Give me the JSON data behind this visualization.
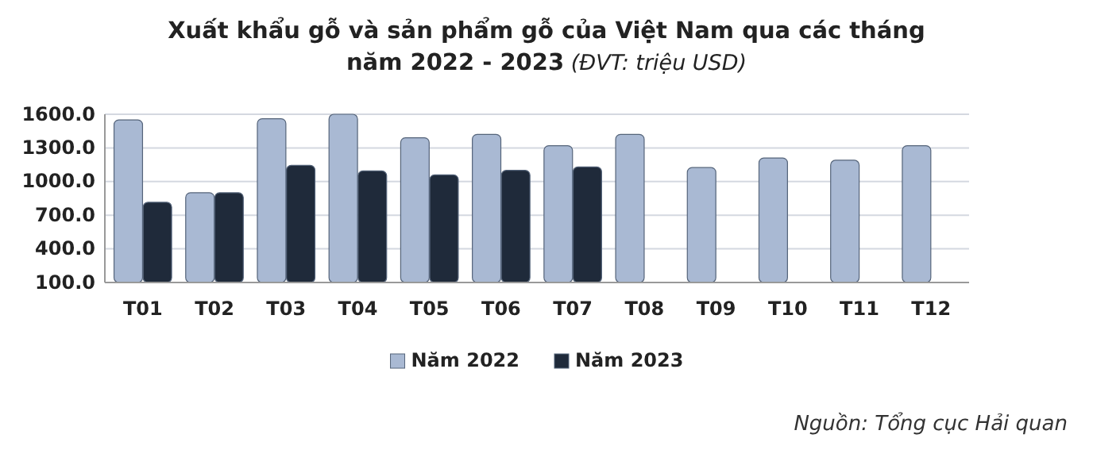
{
  "chart_data": {
    "type": "bar",
    "title": "Xuất khẩu gỗ và sản phẩm gỗ của Việt Nam qua các tháng\nnăm 2022 - 2023 (ĐVT: triệu USD)",
    "categories": [
      "T01",
      "T02",
      "T03",
      "T04",
      "T05",
      "T06",
      "T07",
      "T08",
      "T09",
      "T10",
      "T11",
      "T12"
    ],
    "series": [
      {
        "name": "Năm 2022",
        "color": "#a9b9d3",
        "values": [
          1550,
          900,
          1560,
          1600,
          1390,
          1420,
          1320,
          1420,
          1125,
          1210,
          1190,
          1320
        ]
      },
      {
        "name": "Năm 2023",
        "color": "#1f2a3a",
        "values": [
          815,
          900,
          1145,
          1095,
          1060,
          1100,
          1130,
          null,
          null,
          null,
          null,
          null
        ]
      }
    ],
    "ylim": [
      100,
      1600
    ],
    "yticks": [
      {
        "value": 100,
        "label": "100.0"
      },
      {
        "value": 400,
        "label": "400.0"
      },
      {
        "value": 700,
        "label": "700.0"
      },
      {
        "value": 1000,
        "label": "1000.0"
      },
      {
        "value": 1300,
        "label": "1300.0"
      },
      {
        "value": 1600,
        "label": "1600.0"
      }
    ],
    "grid": "y",
    "legend": "bottom",
    "annotations": [
      "Nguồn: Tổng cục Hải quan"
    ]
  }
}
